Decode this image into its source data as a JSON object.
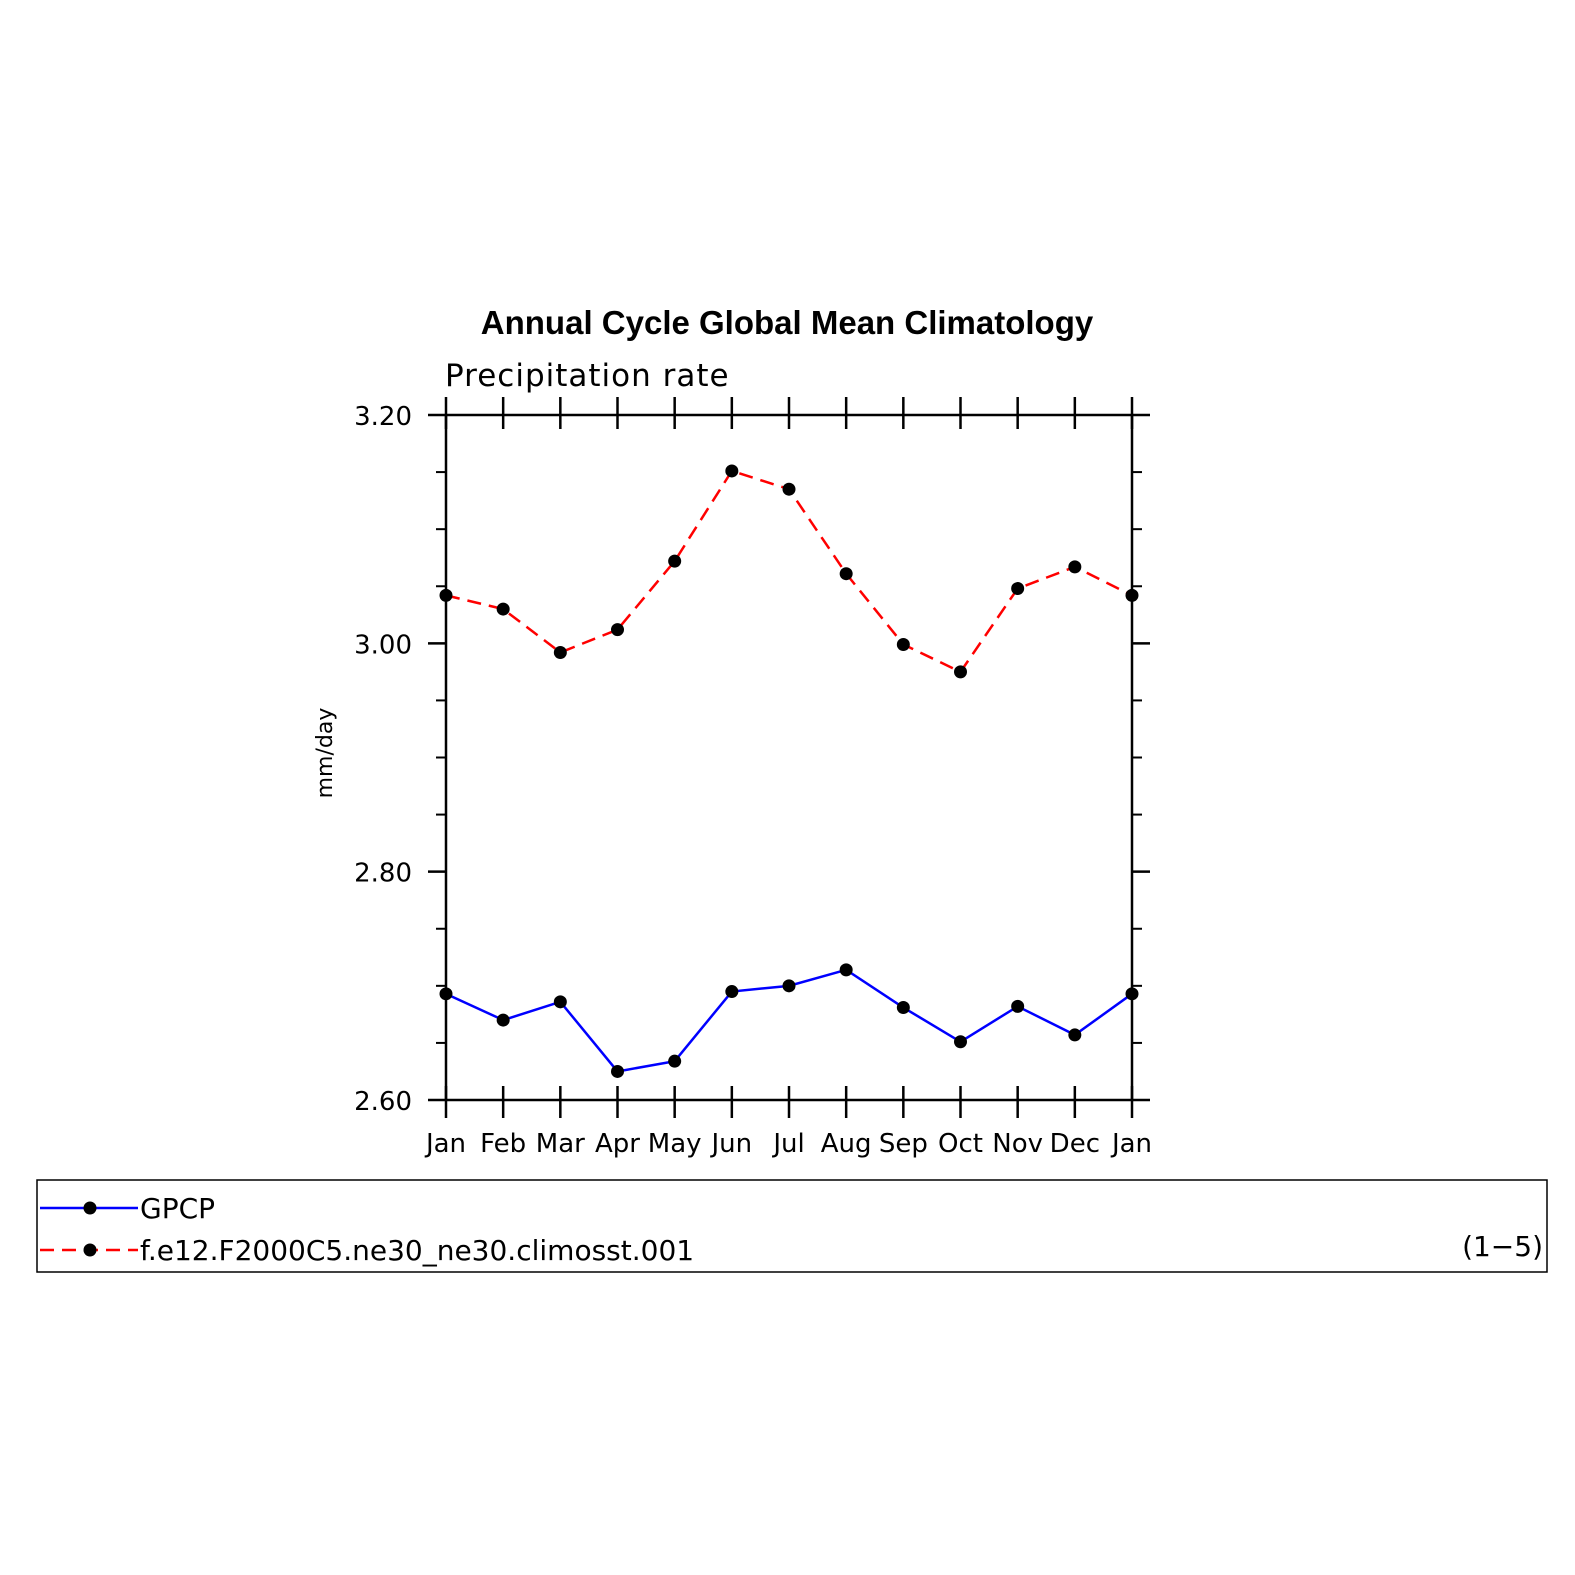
{
  "chart_data": {
    "type": "line",
    "title": "Annual Cycle Global Mean Climatology",
    "subtitle": "Precipitation rate",
    "ylabel": "mm/day",
    "xlabel": "",
    "categories": [
      "Jan",
      "Feb",
      "Mar",
      "Apr",
      "May",
      "Jun",
      "Jul",
      "Aug",
      "Sep",
      "Oct",
      "Nov",
      "Dec",
      "Jan"
    ],
    "ylim": [
      2.6,
      3.2
    ],
    "yticks": [
      "2.60",
      "2.80",
      "3.00",
      "3.20"
    ],
    "ytick_values": [
      2.6,
      2.8,
      3.0,
      3.2
    ],
    "grid": false,
    "legend_position": "bottom",
    "legend_note": "(1−5)",
    "series": [
      {
        "name": "GPCP",
        "color": "#0000ff",
        "dash": "solid",
        "values": [
          2.693,
          2.67,
          2.686,
          2.625,
          2.634,
          2.695,
          2.7,
          2.714,
          2.681,
          2.651,
          2.682,
          2.657,
          2.693
        ]
      },
      {
        "name": "f.e12.F2000C5.ne30_ne30.climosst.001",
        "color": "#ff0000",
        "dash": "dashed",
        "values": [
          3.042,
          3.03,
          2.992,
          3.012,
          3.072,
          3.151,
          3.135,
          3.061,
          2.999,
          2.975,
          3.048,
          3.067,
          3.042
        ]
      }
    ]
  }
}
